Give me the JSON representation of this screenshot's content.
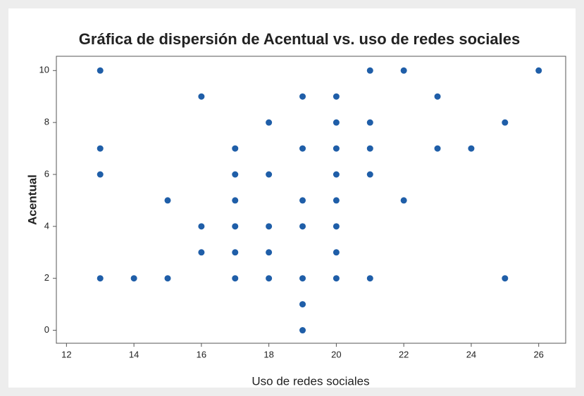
{
  "chart_data": {
    "type": "scatter",
    "title": "Gráfica de dispersión de Acentual vs. uso de redes sociales",
    "x_label": "Uso de redes sociales",
    "y_label": "Acentual",
    "color": "#1f5ea8",
    "x": [
      13,
      13,
      13,
      13,
      14,
      15,
      15,
      16,
      16,
      16,
      17,
      17,
      17,
      17,
      17,
      17,
      18,
      18,
      18,
      18,
      18,
      19,
      19,
      19,
      19,
      19,
      19,
      19,
      20,
      20,
      20,
      20,
      20,
      20,
      20,
      20,
      21,
      21,
      21,
      21,
      21,
      22,
      22,
      23,
      23,
      24,
      25,
      25,
      26
    ],
    "y": [
      10,
      7,
      6,
      2,
      2,
      5,
      2,
      9,
      4,
      3,
      7,
      6,
      5,
      4,
      3,
      2,
      8,
      6,
      4,
      3,
      2,
      9,
      7,
      5,
      4,
      2,
      1,
      0,
      9,
      8,
      7,
      6,
      5,
      4,
      3,
      2,
      10,
      8,
      7,
      6,
      2,
      10,
      5,
      9,
      7,
      7,
      8,
      2,
      10
    ],
    "xlim": [
      11.7,
      26.8
    ],
    "xticks": [
      12,
      14,
      16,
      18,
      20,
      22,
      24,
      26
    ],
    "ylim": [
      -0.5,
      10.55
    ],
    "yticks": [
      0,
      2,
      4,
      6,
      8,
      10
    ]
  }
}
